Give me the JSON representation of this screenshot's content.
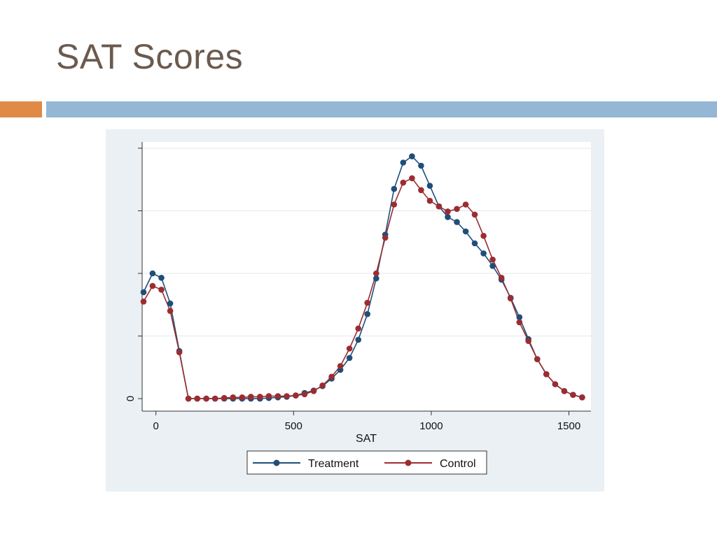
{
  "slide": {
    "title": "SAT Scores"
  },
  "colors": {
    "title_text": "#6b5a4e",
    "accent_orange": "#e08a46",
    "accent_blue": "#95b6d4",
    "panel_bg": "#eaf0f3",
    "plot_bg": "#ffffff",
    "treatment": "#1f4e79",
    "control": "#9b2d30"
  },
  "chart_data": {
    "type": "line",
    "title": "",
    "xlabel": "SAT",
    "ylabel": "",
    "xlim": [
      -50,
      1580
    ],
    "ylim": [
      -0.2,
      4.1
    ],
    "xticks": [
      0,
      500,
      1000,
      1500
    ],
    "xtick_labels": [
      "0",
      "500",
      "1000",
      "1500"
    ],
    "yticks": [
      0,
      1,
      2,
      3,
      4
    ],
    "ytick_labels": [
      "0",
      "",
      "",
      "",
      ""
    ],
    "grid": true,
    "legend_position": "bottom",
    "x": [
      -45,
      -12,
      20,
      52,
      85,
      118,
      150,
      183,
      215,
      248,
      280,
      313,
      345,
      378,
      410,
      443,
      475,
      508,
      540,
      573,
      605,
      638,
      670,
      703,
      735,
      768,
      800,
      833,
      865,
      898,
      930,
      963,
      995,
      1028,
      1060,
      1093,
      1125,
      1158,
      1190,
      1223,
      1255,
      1288,
      1320,
      1353,
      1385,
      1418,
      1450,
      1483,
      1515,
      1548
    ],
    "series": [
      {
        "name": "Treatment",
        "color": "#1f4e79",
        "values": [
          1.7,
          2.0,
          1.93,
          1.52,
          0.76,
          0.0,
          0.0,
          0.0,
          0.0,
          0.0,
          0.0,
          0.0,
          0.0,
          0.0,
          0.01,
          0.02,
          0.03,
          0.05,
          0.09,
          0.13,
          0.2,
          0.32,
          0.46,
          0.65,
          0.94,
          1.35,
          1.92,
          2.62,
          3.35,
          3.77,
          3.87,
          3.72,
          3.4,
          3.07,
          2.9,
          2.82,
          2.67,
          2.48,
          2.32,
          2.12,
          1.9,
          1.61,
          1.3,
          0.95,
          0.63,
          0.39,
          0.23,
          0.12,
          0.06,
          0.02
        ]
      },
      {
        "name": "Control",
        "color": "#9b2d30",
        "values": [
          1.55,
          1.8,
          1.74,
          1.4,
          0.74,
          0.0,
          0.0,
          0.0,
          0.0,
          0.01,
          0.02,
          0.02,
          0.03,
          0.03,
          0.04,
          0.04,
          0.04,
          0.05,
          0.07,
          0.12,
          0.21,
          0.35,
          0.52,
          0.8,
          1.12,
          1.53,
          2.0,
          2.57,
          3.1,
          3.45,
          3.52,
          3.33,
          3.16,
          3.07,
          2.99,
          3.03,
          3.1,
          2.94,
          2.6,
          2.22,
          1.93,
          1.6,
          1.22,
          0.92,
          0.63,
          0.39,
          0.23,
          0.12,
          0.06,
          0.02
        ]
      }
    ]
  }
}
